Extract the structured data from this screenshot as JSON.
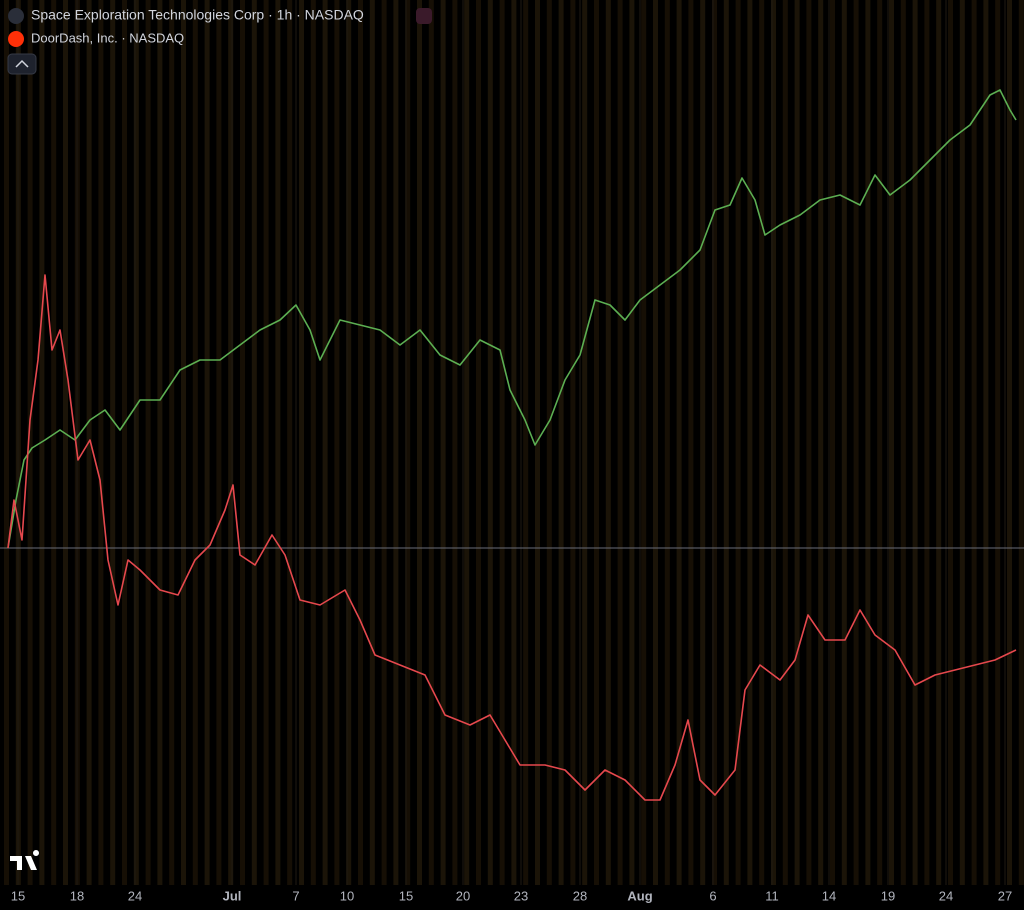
{
  "chart_data": {
    "type": "line",
    "baseline": 0,
    "xlim": [
      0,
      1016
    ],
    "ylim": [
      -67,
      100
    ],
    "xticks": [
      {
        "value": 18,
        "label": "15"
      },
      {
        "value": 77,
        "label": "18"
      },
      {
        "value": 135,
        "label": "24"
      },
      {
        "value": 232,
        "label": "Jul"
      },
      {
        "value": 296,
        "label": "7"
      },
      {
        "value": 347,
        "label": "10"
      },
      {
        "value": 406,
        "label": "15"
      },
      {
        "value": 463,
        "label": "20"
      },
      {
        "value": 521,
        "label": "23"
      },
      {
        "value": 580,
        "label": "28"
      },
      {
        "value": 640,
        "label": "Aug"
      },
      {
        "value": 713,
        "label": "6"
      },
      {
        "value": 772,
        "label": "11"
      },
      {
        "value": 829,
        "label": "14"
      },
      {
        "value": 888,
        "label": "19"
      },
      {
        "value": 946,
        "label": "24"
      },
      {
        "value": 1005,
        "label": "27"
      }
    ],
    "series": [
      {
        "name": "Space Exploration Technologies Corp · 1h · NASDAQ",
        "color": "#5cae52",
        "x": [
          8,
          16,
          24,
          32,
          45,
          60,
          75,
          90,
          105,
          120,
          140,
          160,
          180,
          200,
          220,
          240,
          260,
          280,
          296,
          310,
          320,
          340,
          360,
          380,
          400,
          420,
          440,
          460,
          480,
          500,
          510,
          525,
          535,
          550,
          565,
          580,
          595,
          610,
          625,
          640,
          660,
          680,
          700,
          715,
          730,
          742,
          755,
          765,
          780,
          800,
          820,
          840,
          860,
          875,
          890,
          910,
          930,
          950,
          970,
          990,
          1000,
          1010,
          1016
        ],
        "values": [
          0,
          9.6,
          17.6,
          20,
          21.6,
          23.6,
          21.6,
          25.6,
          27.6,
          23.6,
          29.6,
          29.6,
          35.6,
          37.6,
          37.6,
          40.6,
          43.6,
          45.6,
          48.6,
          43.6,
          37.6,
          45.6,
          44.6,
          43.6,
          40.6,
          43.6,
          38.6,
          36.6,
          41.6,
          39.6,
          31.6,
          25.6,
          20.6,
          25.6,
          33.6,
          38.6,
          49.6,
          48.6,
          45.6,
          49.6,
          52.6,
          55.6,
          59.6,
          67.6,
          68.6,
          74,
          69.6,
          62.6,
          64.6,
          66.6,
          69.6,
          70.6,
          68.6,
          74.6,
          70.6,
          73.6,
          77.6,
          81.6,
          84.6,
          90.6,
          91.6,
          87.6,
          85.6
        ]
      },
      {
        "name": "DoorDash, Inc. · NASDAQ",
        "color": "#e5484d",
        "x": [
          8,
          14,
          22,
          30,
          38,
          45,
          52,
          60,
          68,
          78,
          90,
          100,
          108,
          118,
          128,
          140,
          160,
          178,
          195,
          210,
          225,
          233,
          240,
          255,
          272,
          285,
          300,
          320,
          345,
          360,
          375,
          400,
          425,
          445,
          470,
          490,
          505,
          520,
          545,
          565,
          585,
          605,
          625,
          645,
          660,
          675,
          688,
          700,
          715,
          735,
          745,
          760,
          780,
          795,
          808,
          825,
          845,
          860,
          875,
          895,
          915,
          935,
          955,
          975,
          995,
          1016
        ],
        "values": [
          0,
          9.6,
          1.6,
          25.6,
          37.6,
          54.6,
          39.6,
          43.6,
          33.6,
          17.6,
          21.6,
          13.6,
          -2.4,
          -11.4,
          -2.4,
          -4.4,
          -8.4,
          -9.4,
          -2.4,
          0.6,
          7.6,
          12.6,
          -1.4,
          -3.4,
          2.6,
          -1.4,
          -10.4,
          -11.4,
          -8.4,
          -14.4,
          -21.4,
          -23.4,
          -25.4,
          -33.4,
          -35.4,
          -33.4,
          -38.4,
          -43.4,
          -43.4,
          -44.4,
          -48.4,
          -44.4,
          -46.4,
          -50.4,
          -50.4,
          -43.4,
          -34.4,
          -46.4,
          -49.4,
          -44.4,
          -28.4,
          -23.4,
          -26.4,
          -22.4,
          -13.4,
          -18.4,
          -18.4,
          -12.4,
          -17.4,
          -20.4,
          -27.4,
          -25.4,
          -24.4,
          -23.4,
          -22.4,
          -20.4
        ]
      }
    ]
  }
}
